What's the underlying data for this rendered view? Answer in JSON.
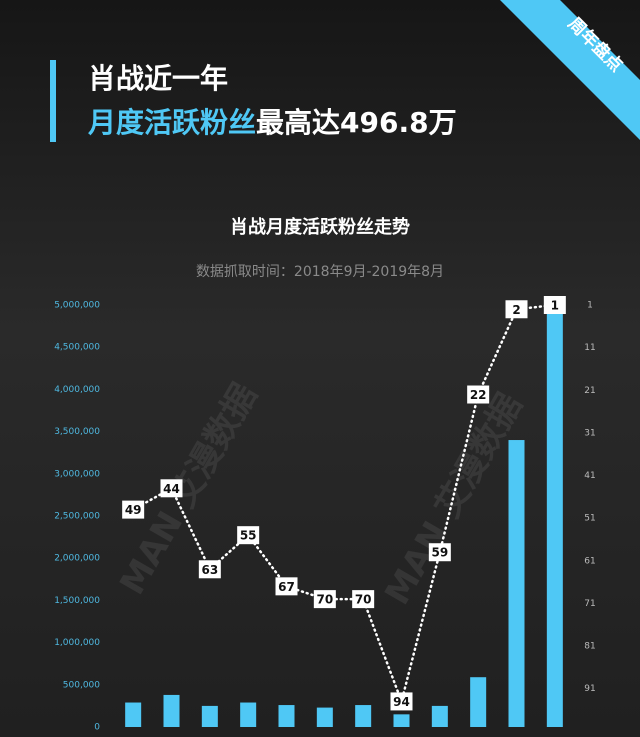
{
  "header": {
    "badge": "周年盘点",
    "title_line1": "肖战近一年",
    "title_line2_highlight": "月度活跃粉丝",
    "title_line2_rest": "最高达496.8万",
    "watermark": "MAN 艾漫数据"
  },
  "chart_data": {
    "type": "bar",
    "title": "肖战月度活跃粉丝走势",
    "subtitle": "数据抓取时间：2018年9月-2019年8月",
    "categories": [
      null,
      null,
      null,
      null,
      null,
      null,
      null,
      null,
      null,
      null,
      null,
      null
    ],
    "series": [
      {
        "type": "bar",
        "color": "#4fc8f5",
        "values": [
          290000,
          380000,
          250000,
          290000,
          260000,
          230000,
          260000,
          150000,
          250000,
          590000,
          3400000,
          4968000
        ]
      },
      {
        "type": "line",
        "color": "#ffffff",
        "axis": "y2",
        "values": [
          49,
          44,
          63,
          55,
          67,
          70,
          70,
          94,
          59,
          22,
          2,
          1
        ]
      }
    ],
    "ylim": [
      0,
      5000000
    ],
    "yticks": [
      0,
      {
        "value": 500000,
        "label": "500,000"
      },
      {
        "value": 1000000,
        "label": "1,000,000"
      },
      {
        "value": 1500000,
        "label": "1,500,000"
      },
      {
        "value": 2000000,
        "label": "2,000,000"
      },
      {
        "value": 2500000,
        "label": "2,500,000"
      },
      {
        "value": 3000000,
        "label": "3,000,000"
      },
      {
        "value": 3500000,
        "label": "3,500,000"
      },
      {
        "value": 4000000,
        "label": "4,000,000"
      },
      {
        "value": 4500000,
        "label": "4,500,000"
      },
      {
        "value": 5000000,
        "label": "5,000,000"
      }
    ],
    "y2lim": [
      100,
      1
    ],
    "y2ticks": [
      1,
      11,
      21,
      31,
      41,
      51,
      61,
      71,
      81,
      91
    ]
  }
}
